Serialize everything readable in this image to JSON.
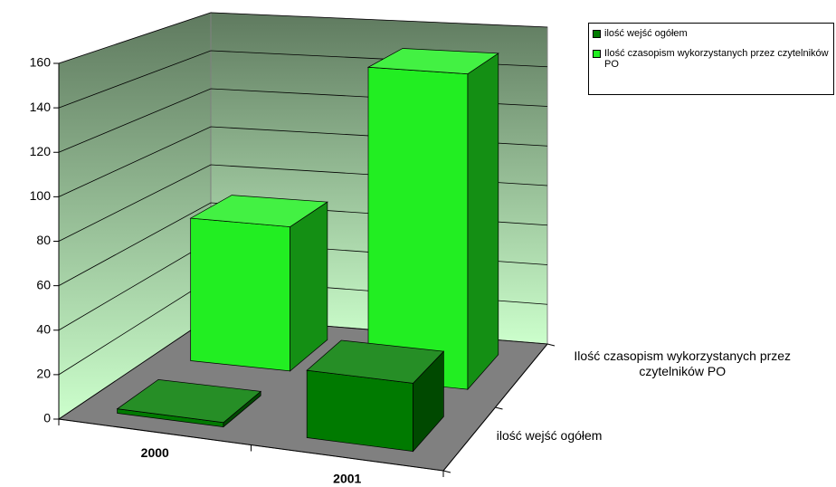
{
  "chart_data": {
    "type": "bar3d",
    "categories": [
      "2000",
      "2001"
    ],
    "series": [
      {
        "name": "ilość wejść ogółem",
        "color": "#007a00",
        "values": [
          2,
          30
        ]
      },
      {
        "name": "Ilość czasopism wykorzystanych przez czytelników PO",
        "color": "#22ee22",
        "values": [
          70,
          150
        ]
      }
    ],
    "ylim": [
      0,
      160
    ],
    "yticks": [
      0,
      20,
      40,
      60,
      80,
      100,
      120,
      140,
      160
    ],
    "grid": true,
    "legend": "top-right"
  }
}
